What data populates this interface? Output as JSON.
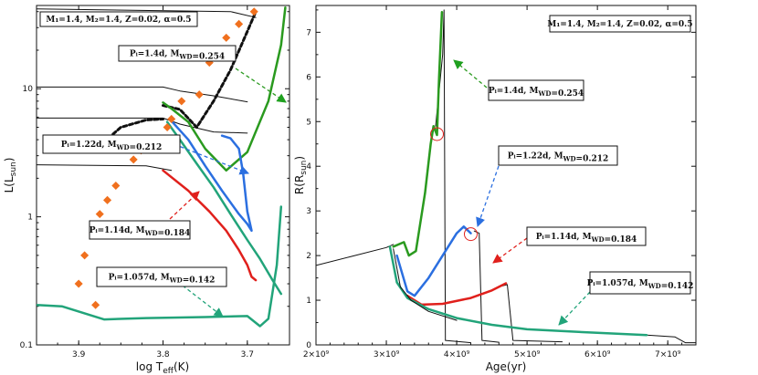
{
  "chart_data": [
    {
      "type": "line",
      "title": "",
      "xlabel": "log T_eff(K)",
      "ylabel": "L(L_sun)",
      "x_range": [
        3.95,
        3.65
      ],
      "y_range_log10": [
        -1.0,
        1.65
      ],
      "x_ticks": [
        {
          "v": 3.9,
          "label": "3.9"
        },
        {
          "v": 3.8,
          "label": "3.8"
        },
        {
          "v": 3.7,
          "label": "3.7"
        }
      ],
      "y_ticks": [
        {
          "v": 0.1,
          "label": "0.1"
        },
        {
          "v": 1,
          "label": "1"
        },
        {
          "v": 10,
          "label": "10"
        }
      ],
      "colors": {
        "green": "#2a9a1f",
        "blue": "#2b6fe0",
        "red": "#e0201c",
        "teal": "#22a47a",
        "black": "#111111",
        "orange": "#f0701e"
      },
      "series": [
        {
          "name": "initial black",
          "color": "black",
          "width": 1,
          "dash": "",
          "points": [
            [
              3.95,
              42
            ],
            [
              3.72,
              40
            ],
            [
              3.69,
              36
            ]
          ]
        },
        {
          "name": "black horizontal 1",
          "color": "black",
          "width": 1,
          "dash": "",
          "points": [
            [
              3.95,
              10.3
            ],
            [
              3.8,
              10.3
            ],
            [
              3.78,
              9.6
            ],
            [
              3.74,
              8.8
            ],
            [
              3.7,
              7.9
            ]
          ]
        },
        {
          "name": "black horizontal 2",
          "color": "black",
          "width": 1,
          "dash": "",
          "points": [
            [
              3.95,
              5.9
            ],
            [
              3.8,
              5.9
            ],
            [
              3.78,
              5.3
            ],
            [
              3.74,
              4.6
            ],
            [
              3.7,
              4.5
            ]
          ]
        },
        {
          "name": "black horizontal 3",
          "color": "black",
          "width": 1,
          "dash": "",
          "points": [
            [
              3.95,
              2.55
            ],
            [
              3.82,
              2.5
            ],
            [
              3.79,
              2.3
            ]
          ]
        },
        {
          "name": "black dashed",
          "color": "black",
          "width": 3,
          "dash": "4,3",
          "points": [
            [
              3.8,
              7.4
            ],
            [
              3.78,
              6.9
            ],
            [
              3.76,
              5.0
            ],
            [
              3.74,
              8.0
            ],
            [
              3.72,
              14
            ],
            [
              3.7,
              28
            ],
            [
              3.69,
              40
            ]
          ]
        },
        {
          "name": "black dashed lower",
          "color": "black",
          "width": 3,
          "dash": "4,3",
          "points": [
            [
              3.865,
              4.1
            ],
            [
              3.85,
              5.0
            ],
            [
              3.82,
              5.7
            ],
            [
              3.8,
              5.8
            ]
          ]
        },
        {
          "name": "Pi=1.4d green",
          "color": "green",
          "width": 2.5,
          "dash": "",
          "points": [
            [
              3.8,
              7.8
            ],
            [
              3.79,
              7.0
            ],
            [
              3.77,
              5.5
            ],
            [
              3.75,
              3.4
            ],
            [
              3.725,
              2.3
            ],
            [
              3.7,
              3.2
            ],
            [
              3.675,
              8.0
            ],
            [
              3.66,
              22
            ],
            [
              3.655,
              43
            ]
          ]
        },
        {
          "name": "Pi=1.22d blue",
          "color": "blue",
          "width": 2.5,
          "dash": "",
          "points": [
            [
              3.79,
              5.6
            ],
            [
              3.77,
              4.0
            ],
            [
              3.75,
              2.5
            ],
            [
              3.73,
              1.6
            ],
            [
              3.71,
              1.05
            ],
            [
              3.7,
              0.88
            ],
            [
              3.695,
              0.78
            ],
            [
              3.7,
              1.1
            ],
            [
              3.705,
              2.2
            ],
            [
              3.71,
              3.4
            ],
            [
              3.72,
              4.1
            ],
            [
              3.73,
              4.3
            ]
          ]
        },
        {
          "name": "Pi=1.14d red",
          "color": "red",
          "width": 2.5,
          "dash": "",
          "points": [
            [
              3.8,
              2.3
            ],
            [
              3.77,
              1.6
            ],
            [
              3.745,
              1.1
            ],
            [
              3.725,
              0.78
            ],
            [
              3.71,
              0.55
            ],
            [
              3.7,
              0.42
            ],
            [
              3.695,
              0.34
            ],
            [
              3.69,
              0.32
            ]
          ]
        },
        {
          "name": "Pi=1.057d teal",
          "color": "teal",
          "width": 2.5,
          "dash": "",
          "points": [
            [
              3.95,
              0.205
            ],
            [
              3.92,
              0.2
            ],
            [
              3.87,
              0.158
            ],
            [
              3.82,
              0.162
            ],
            [
              3.75,
              0.165
            ],
            [
              3.7,
              0.168
            ],
            [
              3.685,
              0.14
            ],
            [
              3.675,
              0.16
            ],
            [
              3.665,
              0.42
            ],
            [
              3.66,
              1.2
            ]
          ]
        },
        {
          "name": "teal upper",
          "color": "teal",
          "width": 2.5,
          "dash": "",
          "points": [
            [
              3.795,
              5.5
            ],
            [
              3.78,
              4.0
            ],
            [
              3.76,
              2.6
            ],
            [
              3.74,
              1.7
            ],
            [
              3.72,
              1.05
            ],
            [
              3.7,
              0.66
            ],
            [
              3.685,
              0.47
            ],
            [
              3.67,
              0.32
            ],
            [
              3.66,
              0.25
            ]
          ]
        }
      ],
      "observed": [
        [
          3.88,
          0.205
        ],
        [
          3.9,
          0.3
        ],
        [
          3.893,
          0.5
        ],
        [
          3.883,
          0.75
        ],
        [
          3.875,
          1.05
        ],
        [
          3.866,
          1.35
        ],
        [
          3.856,
          1.75
        ],
        [
          3.835,
          2.8
        ],
        [
          3.826,
          3.3
        ],
        [
          3.795,
          5.0
        ],
        [
          3.79,
          5.8
        ],
        [
          3.778,
          8.0
        ],
        [
          3.757,
          9.0
        ],
        [
          3.745,
          16
        ],
        [
          3.735,
          20
        ],
        [
          3.725,
          25
        ],
        [
          3.71,
          32
        ],
        [
          3.692,
          40
        ]
      ],
      "annotations": [
        {
          "text": "M₁=1.4, M₂=1.4, Z=0.02, α=0.5",
          "arrow": false
        },
        {
          "text": "Pᵢ=1.4d, M_WD=0.254",
          "arrow": true,
          "color": "green"
        },
        {
          "text": "Pᵢ=1.22d, M_WD=0.212",
          "arrow": true,
          "color": "blue"
        },
        {
          "text": "Pᵢ=1.14d, M_WD=0.184",
          "arrow": true,
          "color": "red"
        },
        {
          "text": "Pᵢ=1.057d, M_WD=0.142",
          "arrow": true,
          "color": "teal"
        }
      ]
    },
    {
      "type": "line",
      "title": "",
      "xlabel": "Age(yr)",
      "ylabel": "R(R_sun)",
      "x_range": [
        2000000000.0,
        7400000000.0
      ],
      "y_range": [
        0,
        7.6
      ],
      "x_ticks": [
        {
          "v": 2000000000.0,
          "label": "2×10⁹"
        },
        {
          "v": 3000000000.0,
          "label": "3×10⁹"
        },
        {
          "v": 4000000000.0,
          "label": "4×10⁹"
        },
        {
          "v": 5000000000.0,
          "label": "5×10⁹"
        },
        {
          "v": 6000000000.0,
          "label": "6×10⁹"
        },
        {
          "v": 7000000000.0,
          "label": "7×10⁹"
        }
      ],
      "y_ticks": [
        {
          "v": 0,
          "label": "0"
        },
        {
          "v": 1,
          "label": "1"
        },
        {
          "v": 2,
          "label": "2"
        },
        {
          "v": 3,
          "label": "3"
        },
        {
          "v": 4,
          "label": "4"
        },
        {
          "v": 5,
          "label": "5"
        },
        {
          "v": 6,
          "label": "6"
        },
        {
          "v": 7,
          "label": "7"
        }
      ],
      "series": [
        {
          "name": "initial",
          "color": "black",
          "width": 1,
          "dash": "",
          "points": [
            [
              2000000000.0,
              1.78
            ],
            [
              2500000000.0,
              1.98
            ],
            [
              3000000000.0,
              2.18
            ],
            [
              3100000000.0,
              2.25
            ]
          ]
        },
        {
          "name": "black tall spike",
          "color": "black",
          "width": 1,
          "dash": "",
          "points": [
            [
              3700000000.0,
              4.9
            ],
            [
              3800000000.0,
              6.5
            ],
            [
              3820000000.0,
              7.5
            ],
            [
              3840000000.0,
              0.1
            ],
            [
              4200000000.0,
              0.05
            ]
          ]
        },
        {
          "name": "black drop 4.3",
          "color": "black",
          "width": 1,
          "dash": "",
          "points": [
            [
              4250000000.0,
              2.55
            ],
            [
              4320000000.0,
              2.5
            ],
            [
              4360000000.0,
              0.1
            ],
            [
              4600000000.0,
              0.06
            ]
          ]
        },
        {
          "name": "black drop 4.8",
          "color": "black",
          "width": 1,
          "dash": "",
          "points": [
            [
              4600000000.0,
              1.3
            ],
            [
              4720000000.0,
              1.35
            ],
            [
              4800000000.0,
              0.1
            ],
            [
              5500000000.0,
              0.07
            ]
          ]
        },
        {
          "name": "black tail",
          "color": "black",
          "width": 1,
          "dash": "",
          "points": [
            [
              6700000000.0,
              0.22
            ],
            [
              7100000000.0,
              0.18
            ],
            [
              7250000000.0,
              0.05
            ],
            [
              7400000000.0,
              0.05
            ]
          ]
        },
        {
          "name": "Pi=1.4d green",
          "color": "green",
          "width": 2.5,
          "dash": "",
          "points": [
            [
              3100000000.0,
              2.2
            ],
            [
              3250000000.0,
              2.3
            ],
            [
              3320000000.0,
              2.0
            ],
            [
              3420000000.0,
              2.1
            ],
            [
              3550000000.0,
              3.4
            ],
            [
              3630000000.0,
              4.5
            ],
            [
              3670000000.0,
              4.9
            ],
            [
              3720000000.0,
              4.7
            ],
            [
              3750000000.0,
              6.0
            ],
            [
              3790000000.0,
              7.45
            ]
          ]
        },
        {
          "name": "Pi=1.22d blue",
          "color": "blue",
          "width": 2.5,
          "dash": "",
          "points": [
            [
              3150000000.0,
              2.0
            ],
            [
              3300000000.0,
              1.2
            ],
            [
              3400000000.0,
              1.1
            ],
            [
              3600000000.0,
              1.5
            ],
            [
              3800000000.0,
              2.0
            ],
            [
              4000000000.0,
              2.5
            ],
            [
              4100000000.0,
              2.65
            ],
            [
              4200000000.0,
              2.5
            ]
          ]
        },
        {
          "name": "Pi=1.14d red",
          "color": "red",
          "width": 2.5,
          "dash": "",
          "points": [
            [
              3300000000.0,
              1.1
            ],
            [
              3500000000.0,
              0.9
            ],
            [
              3800000000.0,
              0.92
            ],
            [
              4200000000.0,
              1.05
            ],
            [
              4500000000.0,
              1.22
            ],
            [
              4700000000.0,
              1.38
            ]
          ]
        },
        {
          "name": "Pi=1.057d teal",
          "color": "teal",
          "width": 2.5,
          "dash": "",
          "points": [
            [
              3050000000.0,
              2.2
            ],
            [
              3150000000.0,
              1.4
            ],
            [
              3300000000.0,
              1.05
            ],
            [
              3600000000.0,
              0.8
            ],
            [
              4000000000.0,
              0.6
            ],
            [
              4500000000.0,
              0.45
            ],
            [
              5000000000.0,
              0.35
            ],
            [
              6000000000.0,
              0.27
            ],
            [
              6700000000.0,
              0.22
            ]
          ]
        },
        {
          "name": "black dark overlap",
          "color": "black",
          "width": 1,
          "dash": "",
          "points": [
            [
              3100000000.0,
              2.15
            ],
            [
              3200000000.0,
              1.3
            ],
            [
              3350000000.0,
              1.0
            ],
            [
              3600000000.0,
              0.75
            ],
            [
              4000000000.0,
              0.55
            ]
          ]
        }
      ],
      "markers": [
        [
          3720000000.0,
          4.72
        ],
        [
          4200000000.0,
          2.48
        ]
      ],
      "annotations": [
        {
          "text": "M₁=1.4, M₂=1.4, Z=0.02, α=0.5",
          "arrow": false
        },
        {
          "text": "Pᵢ=1.4d, M_WD=0.254",
          "arrow": true,
          "color": "green"
        },
        {
          "text": "Pᵢ=1.22d, M_WD=0.212",
          "arrow": true,
          "color": "blue"
        },
        {
          "text": "Pᵢ=1.14d, M_WD=0.184",
          "arrow": true,
          "color": "red"
        },
        {
          "text": "Pᵢ=1.057d, M_WD=0.142",
          "arrow": true,
          "color": "teal"
        }
      ]
    }
  ]
}
